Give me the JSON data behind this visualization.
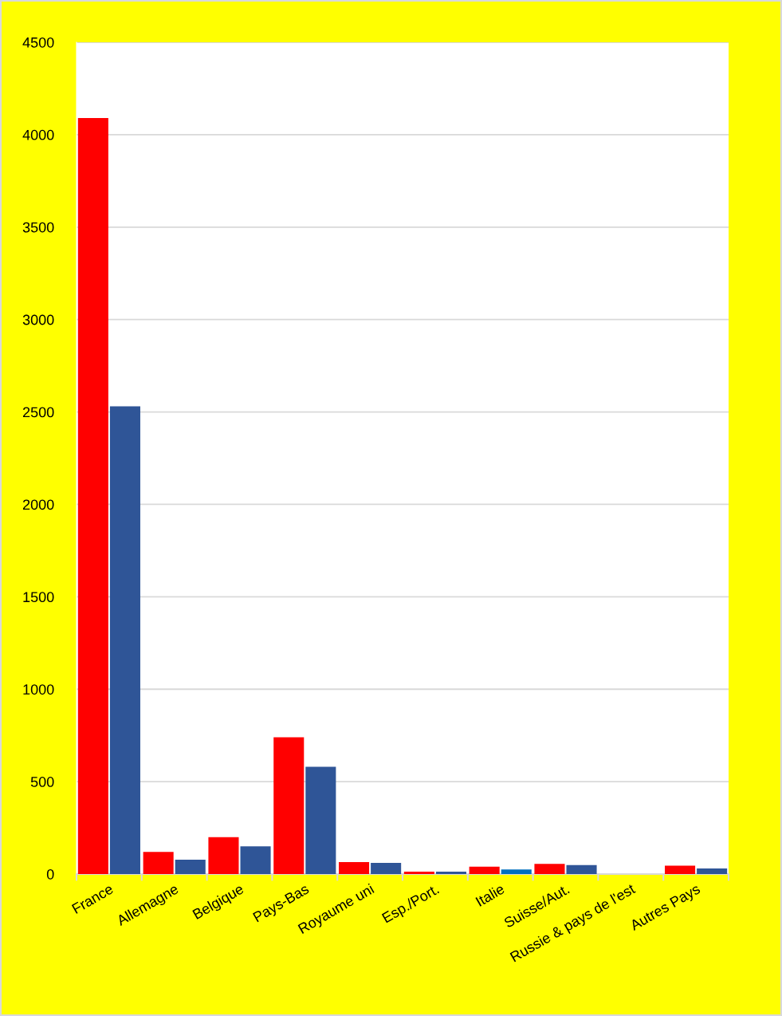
{
  "chart_data": {
    "type": "bar",
    "categories": [
      "France",
      "Allemagne",
      "Belgique",
      "Pays-Bas",
      "Royaume uni",
      "Esp./Port.",
      "Italie",
      "Suisse/Aut.",
      "Russie & pays de l'est",
      "Autres Pays"
    ],
    "series": [
      {
        "color": "#ff0000",
        "values": [
          4090,
          120,
          200,
          740,
          65,
          13,
          40,
          55,
          null,
          45
        ]
      },
      {
        "colors": [
          "#2f5597",
          "#2f5597",
          "#2f5597",
          "#2f5597",
          "#2f5597",
          "#2f5597",
          "#0070c0",
          "#2f5597",
          "#2f5597",
          "#2f5597"
        ],
        "values": [
          2530,
          78,
          150,
          580,
          60,
          13,
          25,
          48,
          null,
          30
        ]
      }
    ],
    "ylim": [
      0,
      4500
    ],
    "yticks": [
      0,
      500,
      1000,
      1500,
      2000,
      2500,
      3000,
      3500,
      4000,
      4500
    ],
    "grid": "y"
  }
}
